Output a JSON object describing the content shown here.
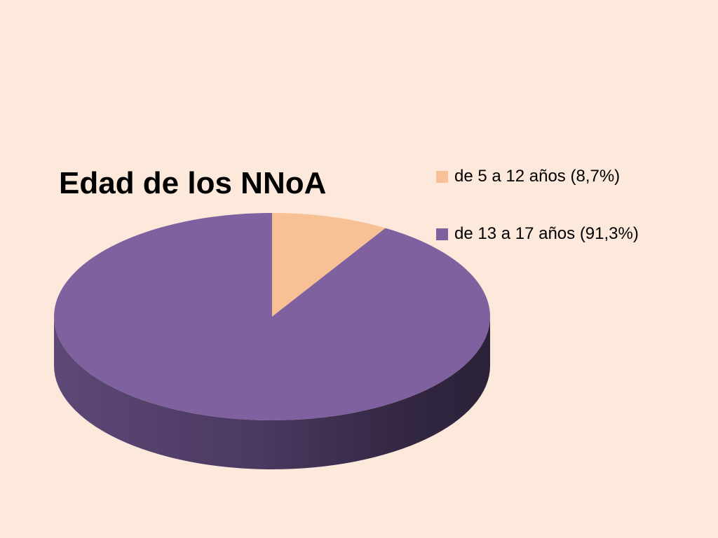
{
  "chart_data": {
    "type": "pie",
    "title": "Edad de los NNoA",
    "categories": [
      "de 5 a 12 años (8,7%)",
      "de 13 a 17 años (91,3%)"
    ],
    "values": [
      8.7,
      91.3
    ],
    "colors": [
      "#f8c095",
      "#7e619e"
    ],
    "legend_position": "right",
    "three_d": true
  }
}
